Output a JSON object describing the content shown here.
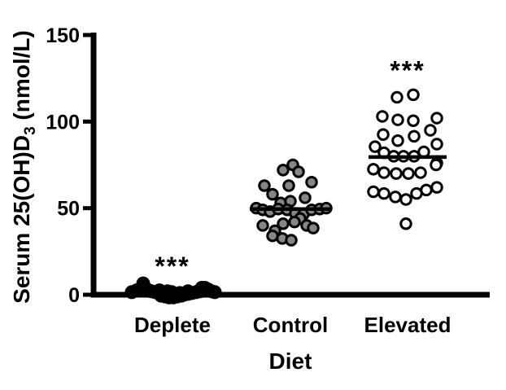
{
  "figure": {
    "description_label": "Scatter dot plot of serum vitamin D by diet group"
  },
  "chart_data": {
    "type": "scatter",
    "title": "",
    "xlabel": "Diet",
    "ylabel": "Serum 25(OH)D3 (nmol/L)",
    "ylabel_parts": {
      "pre": "Serum 25(OH)D",
      "sub": "3",
      "post": " (nmol/L)"
    },
    "ylim": [
      0,
      150
    ],
    "yticks": [
      0,
      50,
      100,
      150
    ],
    "grid": false,
    "legend": "none",
    "categories": [
      "Deplete",
      "Control",
      "Elevated"
    ],
    "colors": {
      "axis": "#000000",
      "deplete_fill": "#000000",
      "control_fill": "#868686",
      "elevated_fill": "#ffffff",
      "point_stroke": "#000000"
    },
    "significance": [
      {
        "category": "Deplete",
        "label": "***",
        "y_value": 16
      },
      {
        "category": "Elevated",
        "label": "***",
        "y_value": 129
      }
    ],
    "series": [
      {
        "name": "Deplete",
        "fill": "#000000",
        "median": 1.5,
        "show_median_line": false,
        "points": [
          [
            -50,
            1.5
          ],
          [
            -44,
            2.5
          ],
          [
            -38,
            4
          ],
          [
            -36,
            6.5
          ],
          [
            -31,
            3
          ],
          [
            -26,
            2
          ],
          [
            -21,
            1.5
          ],
          [
            -16,
            2.5
          ],
          [
            -11,
            1
          ],
          [
            -6,
            2
          ],
          [
            -1,
            1.5
          ],
          [
            -14,
            -0.5
          ],
          [
            -9,
            -1
          ],
          [
            -4,
            -1.5
          ],
          [
            1,
            -1.5
          ],
          [
            6,
            -1
          ],
          [
            11,
            -0.5
          ],
          [
            4,
            0.5
          ],
          [
            9,
            1
          ],
          [
            14,
            0
          ],
          [
            19,
            0.5
          ],
          [
            24,
            1
          ],
          [
            29,
            1.5
          ],
          [
            34,
            2
          ],
          [
            36,
            4
          ],
          [
            40,
            4
          ],
          [
            44,
            3
          ],
          [
            48,
            2
          ],
          [
            52,
            1.5
          ],
          [
            19,
            2
          ]
        ]
      },
      {
        "name": "Control",
        "fill": "#868686",
        "median": 49.5,
        "show_median_line": true,
        "points": [
          [
            -9,
            72
          ],
          [
            3,
            75
          ],
          [
            10,
            71
          ],
          [
            -32,
            63
          ],
          [
            -2,
            63
          ],
          [
            26,
            65
          ],
          [
            -22,
            58
          ],
          [
            18,
            56
          ],
          [
            -12,
            53
          ],
          [
            0,
            54
          ],
          [
            -42,
            50
          ],
          [
            -34,
            49
          ],
          [
            -25,
            48
          ],
          [
            -15,
            49.5
          ],
          [
            -4,
            49
          ],
          [
            6,
            47
          ],
          [
            16,
            46.5
          ],
          [
            26,
            49
          ],
          [
            36,
            49.5
          ],
          [
            44,
            50
          ],
          [
            12,
            44
          ],
          [
            -34,
            40
          ],
          [
            -19,
            37
          ],
          [
            -9,
            41
          ],
          [
            5,
            42
          ],
          [
            20,
            40
          ],
          [
            28,
            38.5
          ],
          [
            -22,
            34
          ],
          [
            -10,
            32.5
          ],
          [
            1,
            31.5
          ]
        ]
      },
      {
        "name": "Elevated",
        "fill": "#ffffff",
        "median": 79.5,
        "show_median_line": true,
        "points": [
          [
            -13,
            114
          ],
          [
            7,
            115.5
          ],
          [
            -31,
            103
          ],
          [
            -12,
            101
          ],
          [
            7,
            100.5
          ],
          [
            36,
            102
          ],
          [
            -30,
            92.5
          ],
          [
            -12,
            89
          ],
          [
            8,
            91.5
          ],
          [
            28,
            95
          ],
          [
            -40,
            85.5
          ],
          [
            36,
            87
          ],
          [
            -29,
            82
          ],
          [
            -17,
            80
          ],
          [
            -5,
            80
          ],
          [
            8,
            80
          ],
          [
            20,
            82.5
          ],
          [
            36,
            76
          ],
          [
            -42,
            72.5
          ],
          [
            -29,
            70.5
          ],
          [
            -14,
            70
          ],
          [
            1,
            70
          ],
          [
            16,
            70.5
          ],
          [
            35,
            75
          ],
          [
            -42,
            59.5
          ],
          [
            -29,
            58.5
          ],
          [
            -15,
            56.5
          ],
          [
            -2,
            55
          ],
          [
            11,
            58.5
          ],
          [
            23,
            60.5
          ],
          [
            36,
            62
          ],
          [
            -2,
            41
          ]
        ]
      }
    ]
  }
}
